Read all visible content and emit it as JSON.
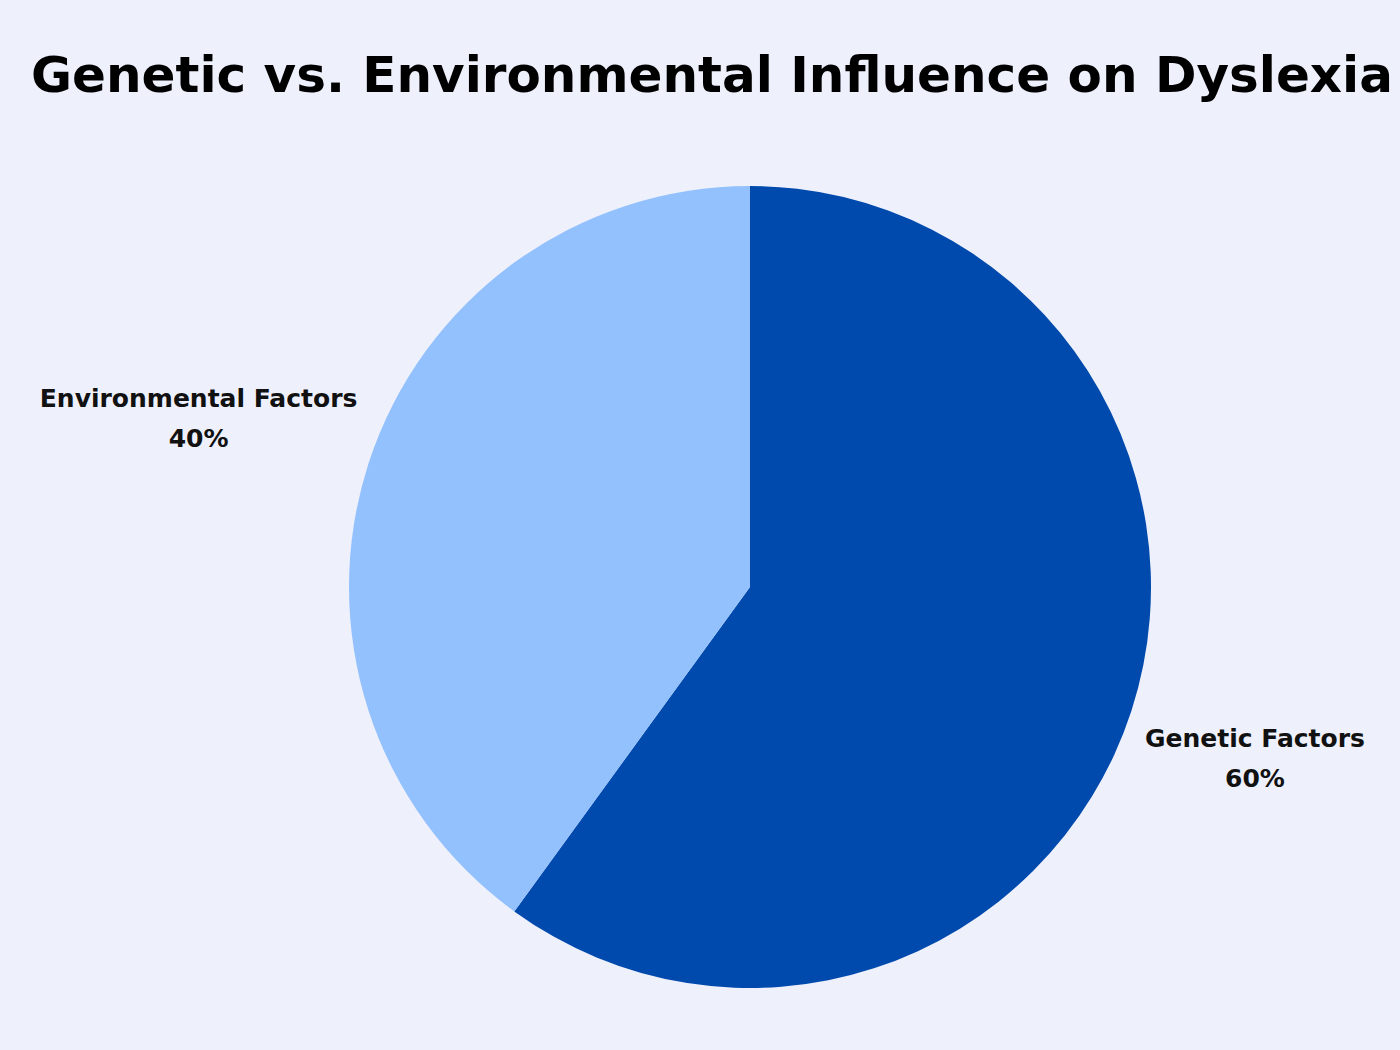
{
  "chart_data": {
    "type": "pie",
    "title": "Genetic vs. Environmental Influence on Dyslexia",
    "categories": [
      "Genetic Factors",
      "Environmental Factors"
    ],
    "values": [
      60,
      40
    ],
    "value_labels": [
      "60%",
      "40%"
    ],
    "colors": [
      "#004aad",
      "#93c1fd"
    ],
    "data_labels": true
  }
}
